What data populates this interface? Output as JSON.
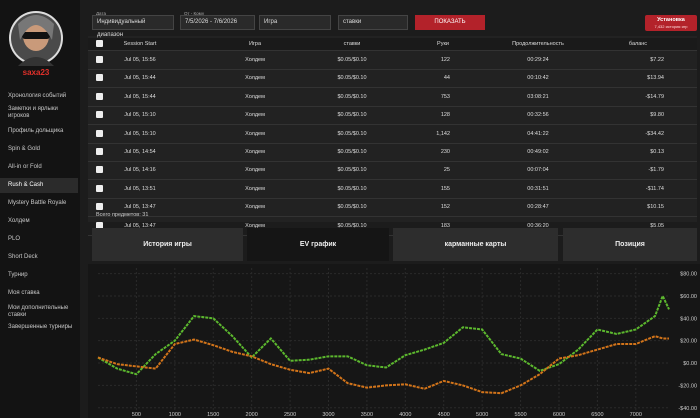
{
  "sidebar": {
    "username": "saxa23",
    "menu": [
      "Хронология событий",
      "Заметки и ярлыки игроков",
      "Профиль дольщика",
      "Spin & Gold",
      "All-in or Fold",
      "Rush & Cash",
      "Mystery Battle Royale",
      "Холдем",
      "PLO",
      "Short Deck",
      "Турнир",
      "Моя ставка",
      "Мои дополнительные ставки",
      "Завершенные турниры"
    ]
  },
  "filters": {
    "date_label": "Дата",
    "date_mode": "Индивидуальный диапазон",
    "range_label": "От - Кому",
    "range": "7/5/2026 - 7/6/2026",
    "game": "Игра",
    "stakes": "ставки",
    "show": "ПОКАЗАТЬ",
    "install": "Установка",
    "install_sub": "7,432 история игр"
  },
  "table": {
    "columns": [
      "Session Start",
      "Игра",
      "ставки",
      "Руки",
      "Продолжительность",
      "баланс"
    ],
    "rows": [
      [
        "Jul 05, 15:56",
        "Холдем",
        "$0.05/$0.10",
        "122",
        "00:29:24",
        "$7.22"
      ],
      [
        "Jul 05, 15:44",
        "Холдем",
        "$0.05/$0.10",
        "44",
        "00:10:42",
        "$13.94"
      ],
      [
        "Jul 05, 15:44",
        "Холдем",
        "$0.05/$0.10",
        "753",
        "03:08:21",
        "-$14.79"
      ],
      [
        "Jul 05, 15:10",
        "Холдем",
        "$0.05/$0.10",
        "128",
        "00:32:56",
        "$9.80"
      ],
      [
        "Jul 05, 15:10",
        "Холдем",
        "$0.05/$0.10",
        "1,142",
        "04:41:22",
        "-$34.42"
      ],
      [
        "Jul 05, 14:54",
        "Холдем",
        "$0.05/$0.10",
        "230",
        "00:49:02",
        "$0.13"
      ],
      [
        "Jul 05, 14:16",
        "Холдем",
        "$0.05/$0.10",
        "25",
        "00:07:04",
        "-$1.79"
      ],
      [
        "Jul 05, 13:51",
        "Холдем",
        "$0.05/$0.10",
        "155",
        "00:31:51",
        "-$11.74"
      ],
      [
        "Jul 05, 13:47",
        "Холдем",
        "$0.05/$0.10",
        "152",
        "00:28:47",
        "$10.15"
      ],
      [
        "Jul 05, 13:47",
        "Холдем",
        "$0.05/$0.10",
        "183",
        "00:36:20",
        "$5.05"
      ]
    ],
    "footer": "Всего предметов: 31"
  },
  "tabs": [
    "История игры",
    "EV график",
    "карманные карты",
    "Позиция"
  ],
  "chart_data": {
    "type": "line",
    "grid": true,
    "x": [
      0,
      250,
      500,
      750,
      1000,
      1250,
      1500,
      1750,
      2000,
      2250,
      2500,
      2750,
      3000,
      3250,
      3500,
      3750,
      4000,
      4250,
      4500,
      4750,
      5000,
      5250,
      5500,
      5750,
      6000,
      6250,
      6500,
      6750,
      7000,
      7250,
      7350,
      7432
    ],
    "series": [
      {
        "color": "#5cb82e",
        "values": [
          5,
          -5,
          -10,
          8,
          20,
          42,
          40,
          24,
          5,
          22,
          2,
          3,
          6,
          6,
          -2,
          -4,
          7,
          12,
          18,
          32,
          30,
          8,
          4,
          -7,
          -1,
          12,
          30,
          26,
          30,
          42,
          60,
          48
        ]
      },
      {
        "color": "#d2741a",
        "values": [
          5,
          -1,
          -3,
          -5,
          17,
          21,
          16,
          10,
          6,
          -1,
          -6,
          -9,
          -5,
          -18,
          -22,
          -20,
          -19,
          -23,
          -16,
          -20,
          -26,
          -27,
          -20,
          -10,
          4,
          7,
          12,
          17,
          17,
          24,
          22,
          22
        ]
      }
    ],
    "xlim": [
      0,
      7432
    ],
    "xticks": [
      500,
      1000,
      1500,
      2000,
      2500,
      3000,
      3500,
      4000,
      4500,
      5000,
      5500,
      6000,
      6500,
      7000
    ],
    "ylim": [
      -42,
      85
    ],
    "yticks": [
      {
        "value": 80,
        "label": "$80.00"
      },
      {
        "value": 60,
        "label": "$60.00"
      },
      {
        "value": 40,
        "label": "$40.00"
      },
      {
        "value": 20,
        "label": "$20.00"
      },
      {
        "value": 0,
        "label": "$0.00"
      },
      {
        "value": -20,
        "label": "-$20.00"
      },
      {
        "value": -40,
        "label": "-$40.00"
      }
    ]
  }
}
